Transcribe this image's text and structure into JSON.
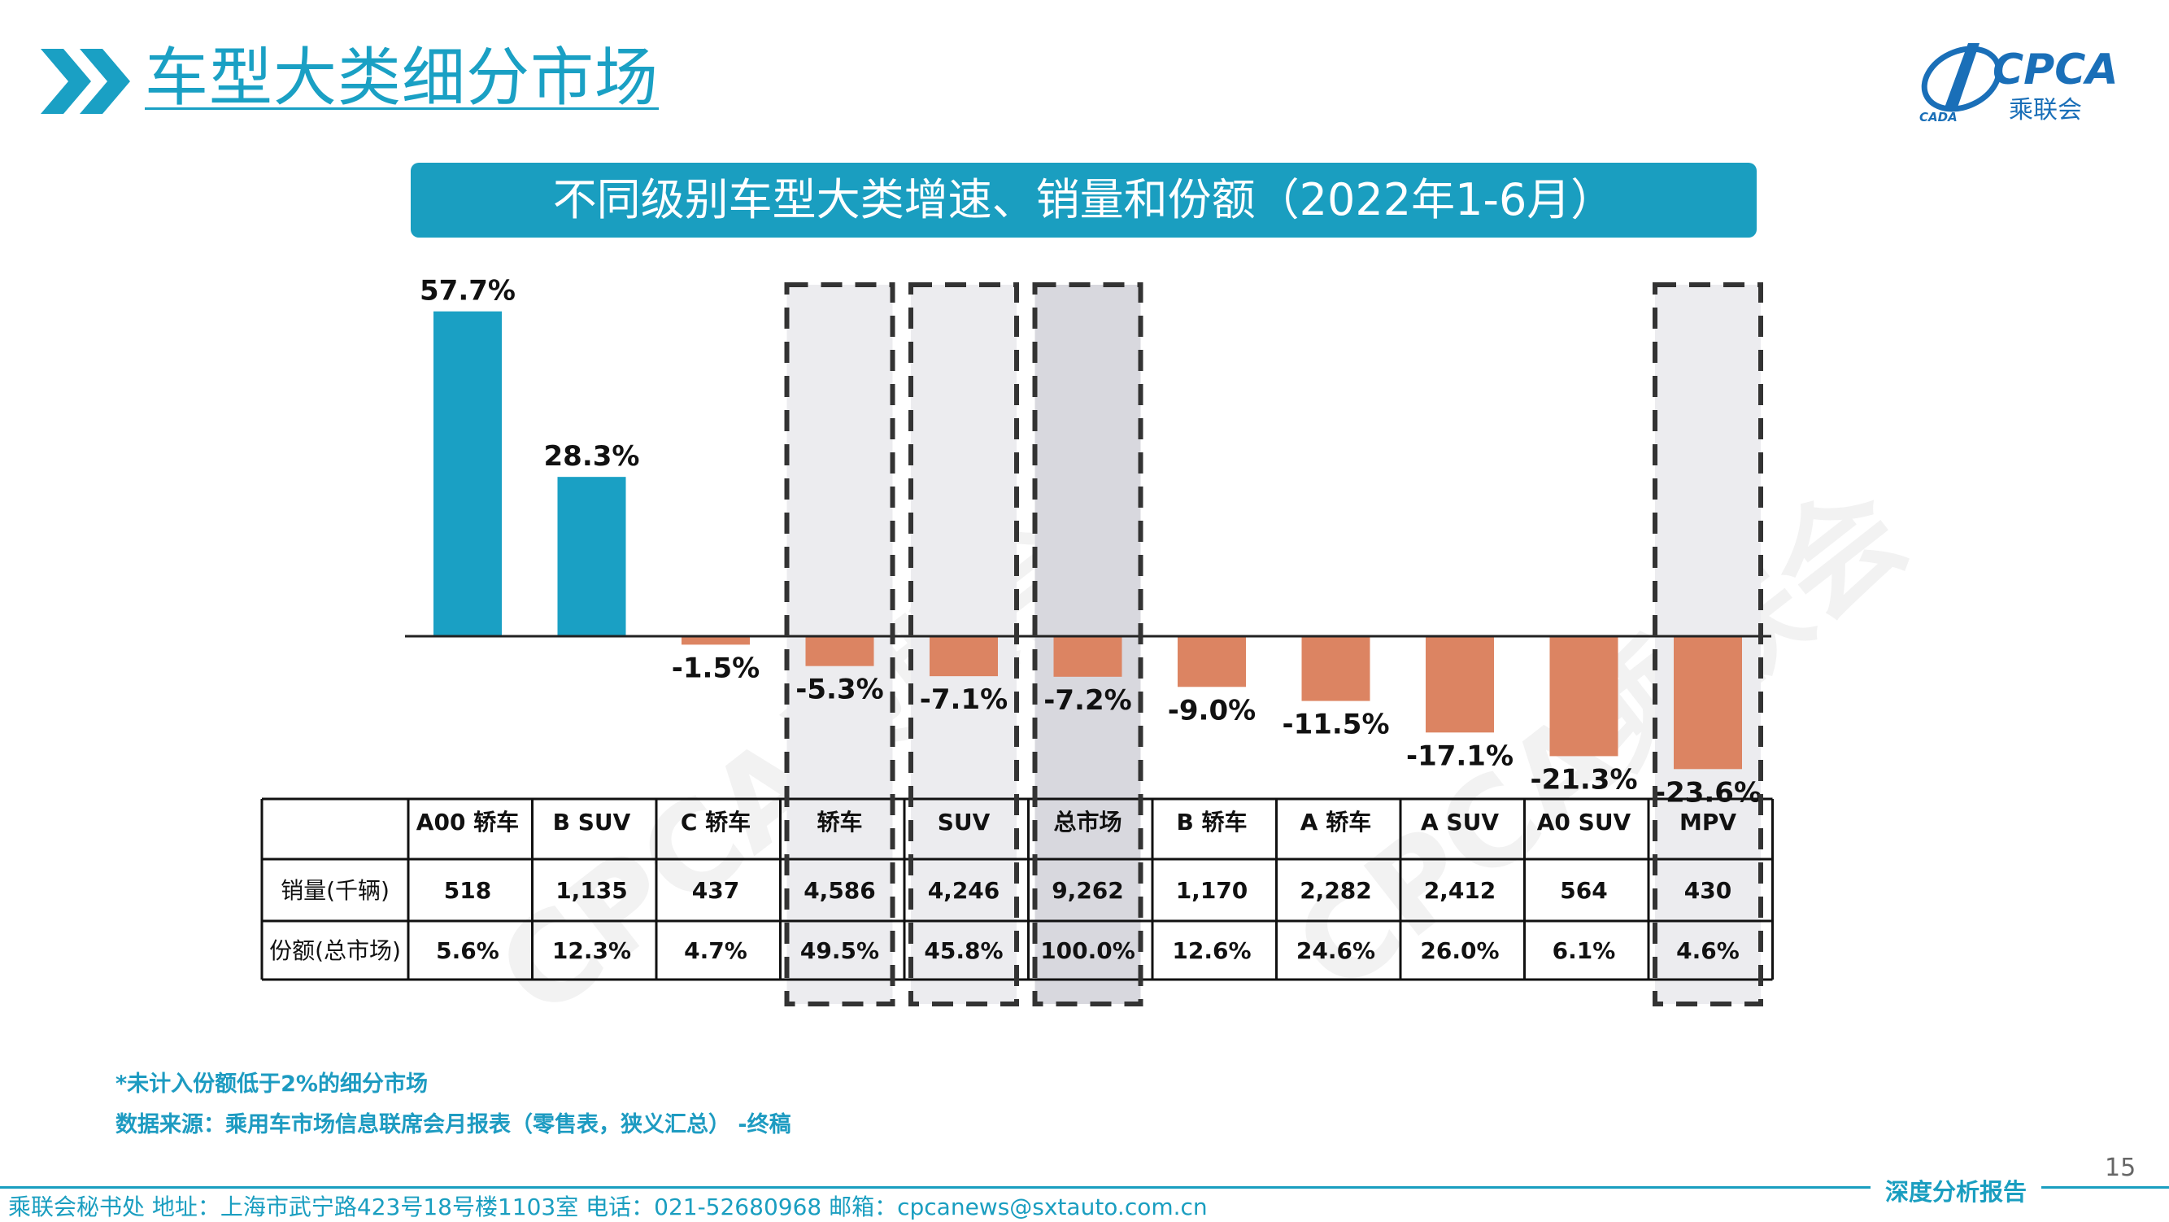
{
  "header": {
    "title": "车型大类细分市场",
    "logo_text": "CPCA",
    "logo_sub": "乘联会",
    "logo_small": "CADA"
  },
  "chart_banner": "不同级别车型大类增速、销量和份额（2022年1-6月）",
  "watermark": "CPCA乘联会",
  "chart_data": {
    "type": "bar",
    "categories": [
      "A00 轿车",
      "B SUV",
      "C 轿车",
      "轿车",
      "SUV",
      "总市场",
      "B 轿车",
      "A 轿车",
      "A SUV",
      "A0 SUV",
      "MPV"
    ],
    "values": [
      57.7,
      28.3,
      -1.5,
      -5.3,
      -7.1,
      -7.2,
      -9.0,
      -11.5,
      -17.1,
      -21.3,
      -23.6
    ],
    "value_labels": [
      "57.7%",
      "28.3%",
      "-1.5%",
      "-5.3%",
      "-7.1%",
      "-7.2%",
      "-9.0%",
      "-11.5%",
      "-17.1%",
      "-21.3%",
      "-23.6%"
    ],
    "highlighted": [
      "轿车",
      "SUV",
      "总市场",
      "MPV"
    ],
    "colors": {
      "positive": "#1aa0c4",
      "negative": "#dc8462",
      "highlight_bg": "#ececef",
      "total_bg": "#d8d8de"
    },
    "table": {
      "row_labels": [
        "销量(千辆)",
        "份额(总市场)"
      ],
      "rows": [
        [
          "518",
          "1,135",
          "437",
          "4,586",
          "4,246",
          "9,262",
          "1,170",
          "2,282",
          "2,412",
          "564",
          "430"
        ],
        [
          "5.6%",
          "12.3%",
          "4.7%",
          "49.5%",
          "45.8%",
          "100.0%",
          "12.6%",
          "24.6%",
          "26.0%",
          "6.1%",
          "4.6%"
        ]
      ]
    }
  },
  "footnotes": {
    "note1": "*未计入份额低于2%的细分市场",
    "note2": "数据来源：乘用车市场信息联席会月报表（零售表，狭义汇总） -终稿"
  },
  "page_number": "15",
  "report_label": "深度分析报告",
  "footer": "乘联会秘书处   地址：上海市武宁路423号18号楼1103室   电话：021-52680968   邮箱：cpcanews@sxtauto.com.cn"
}
